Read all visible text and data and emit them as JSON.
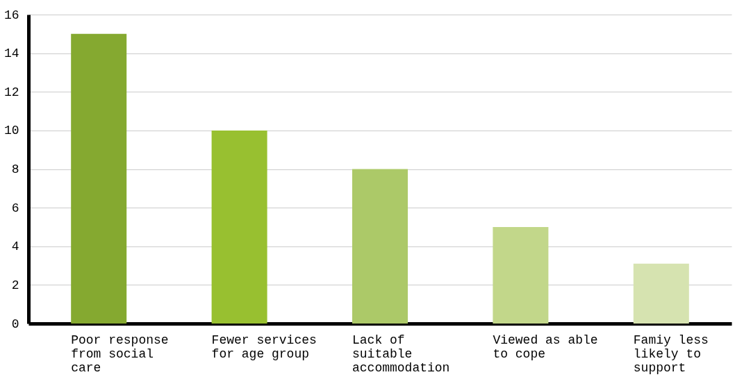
{
  "chart_data": {
    "type": "bar",
    "categories": [
      "Poor response from social care",
      "Fewer services for age group",
      "Lack of suitable accommodation",
      "Viewed as able to cope",
      "Famiy less likely to support"
    ],
    "values": [
      15,
      10,
      8,
      5,
      3.1
    ],
    "colors": [
      "#85a930",
      "#98c030",
      "#acc968",
      "#c2d78a",
      "#d6e3b0"
    ],
    "ylim": [
      0,
      16
    ],
    "yticks": [
      0,
      2,
      4,
      6,
      8,
      10,
      12,
      14,
      16
    ],
    "grid": "y"
  }
}
